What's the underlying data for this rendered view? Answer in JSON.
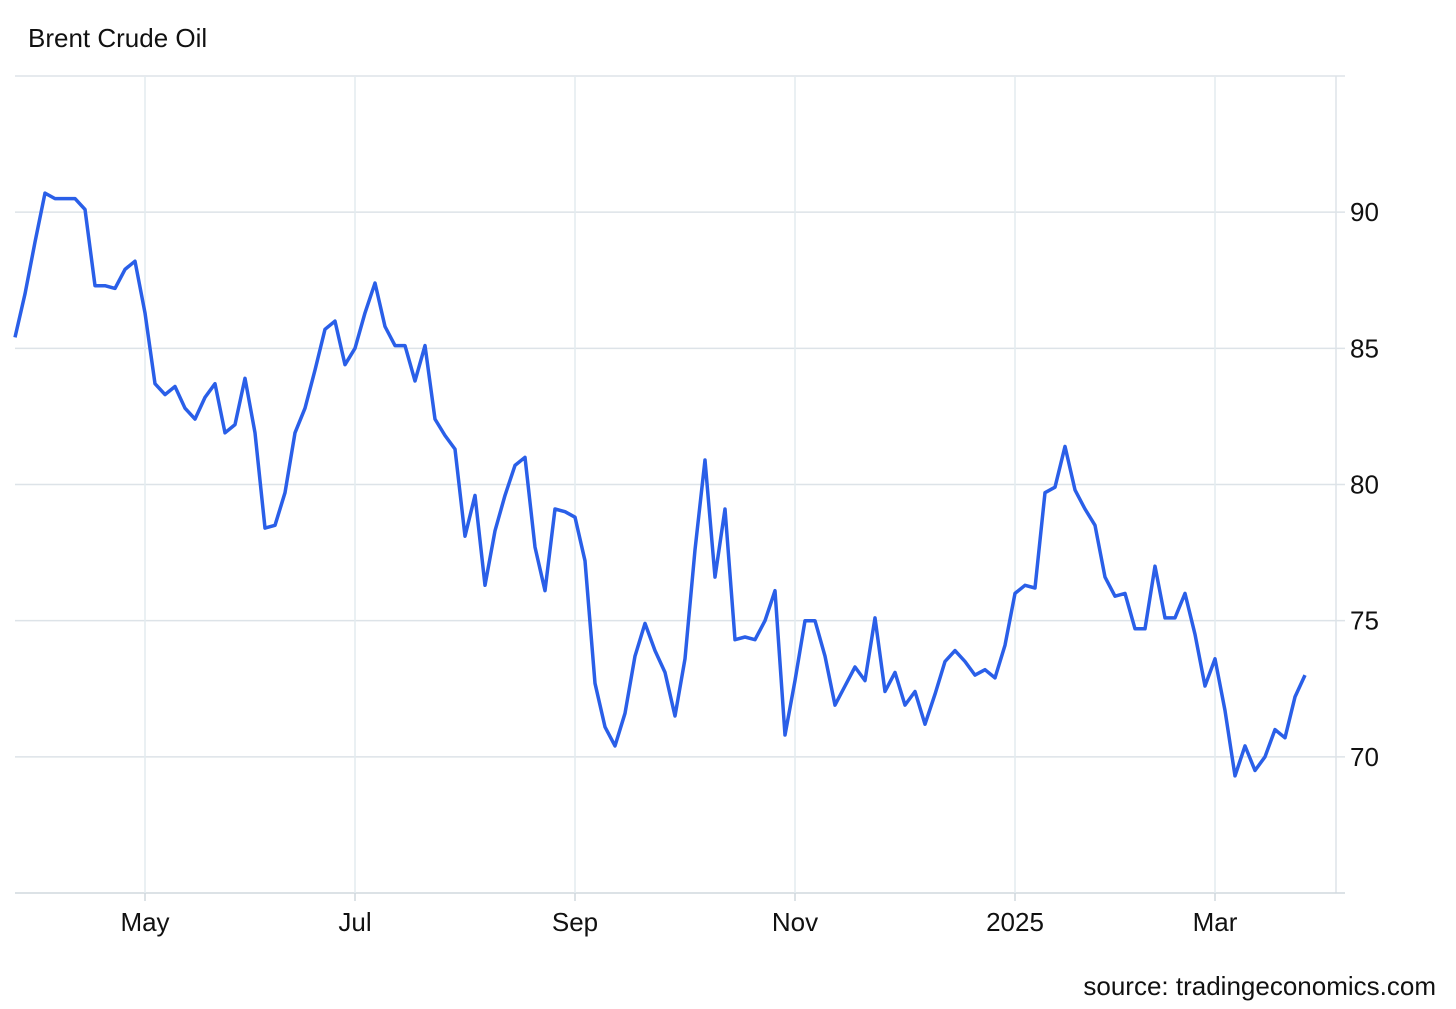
{
  "chart_data": {
    "type": "line",
    "title": "Brent Crude Oil",
    "source": "source: tradingeconomics.com",
    "categories": [
      null,
      null,
      null,
      null,
      null,
      null,
      null,
      null,
      null,
      null,
      null,
      null,
      null,
      "May",
      null,
      null,
      null,
      null,
      null,
      null,
      null,
      null,
      null,
      null,
      null,
      null,
      null,
      null,
      null,
      null,
      null,
      null,
      null,
      null,
      "Jul",
      null,
      null,
      null,
      null,
      null,
      null,
      null,
      null,
      null,
      null,
      null,
      null,
      null,
      null,
      null,
      null,
      null,
      null,
      null,
      null,
      null,
      "Sep",
      null,
      null,
      null,
      null,
      null,
      null,
      null,
      null,
      null,
      null,
      null,
      null,
      null,
      null,
      null,
      null,
      null,
      null,
      null,
      null,
      null,
      "Nov",
      null,
      null,
      null,
      null,
      null,
      null,
      null,
      null,
      null,
      null,
      null,
      null,
      null,
      null,
      null,
      null,
      null,
      null,
      null,
      null,
      null,
      "2025",
      null,
      null,
      null,
      null,
      null,
      null,
      null,
      null,
      null,
      null,
      null,
      null,
      null,
      null,
      null,
      null,
      null,
      null,
      null,
      "Mar",
      null,
      null,
      null,
      null,
      null,
      null,
      null,
      null,
      null
    ],
    "values": [
      85.4,
      87.0,
      88.9,
      90.7,
      90.5,
      90.5,
      90.5,
      90.1,
      87.3,
      87.3,
      87.2,
      87.9,
      88.2,
      86.3,
      83.7,
      83.3,
      83.6,
      82.8,
      82.4,
      83.2,
      83.7,
      81.9,
      82.2,
      83.9,
      81.9,
      78.4,
      78.5,
      79.7,
      81.9,
      82.8,
      84.2,
      85.7,
      86.0,
      84.4,
      85.0,
      86.3,
      87.4,
      85.8,
      85.1,
      85.1,
      83.8,
      85.1,
      82.4,
      81.8,
      81.3,
      78.1,
      79.6,
      76.3,
      78.3,
      79.6,
      80.7,
      81.0,
      77.7,
      76.1,
      79.1,
      79.0,
      78.8,
      77.2,
      72.7,
      71.1,
      70.4,
      71.6,
      73.7,
      74.9,
      73.9,
      73.1,
      71.5,
      73.6,
      77.6,
      80.9,
      76.6,
      79.1,
      74.3,
      74.4,
      74.3,
      75.0,
      76.1,
      70.8,
      72.8,
      75.0,
      75.0,
      73.7,
      71.9,
      72.6,
      73.3,
      72.8,
      75.1,
      72.4,
      73.1,
      71.9,
      72.4,
      71.2,
      72.3,
      73.5,
      73.9,
      73.5,
      73.0,
      73.2,
      72.9,
      74.1,
      76.0,
      76.3,
      76.2,
      79.7,
      79.9,
      81.4,
      79.8,
      79.1,
      78.5,
      76.6,
      75.9,
      76.0,
      74.7,
      74.7,
      77.0,
      75.1,
      75.1,
      76.0,
      74.5,
      72.6,
      73.6,
      71.7,
      69.3,
      70.4,
      69.5,
      70.0,
      71.0,
      70.7,
      72.2,
      73.0
    ],
    "color": "#2a5fe8",
    "ylim": [
      65,
      95
    ],
    "yticks": [
      70,
      75,
      80,
      85,
      90
    ],
    "grid": true
  }
}
